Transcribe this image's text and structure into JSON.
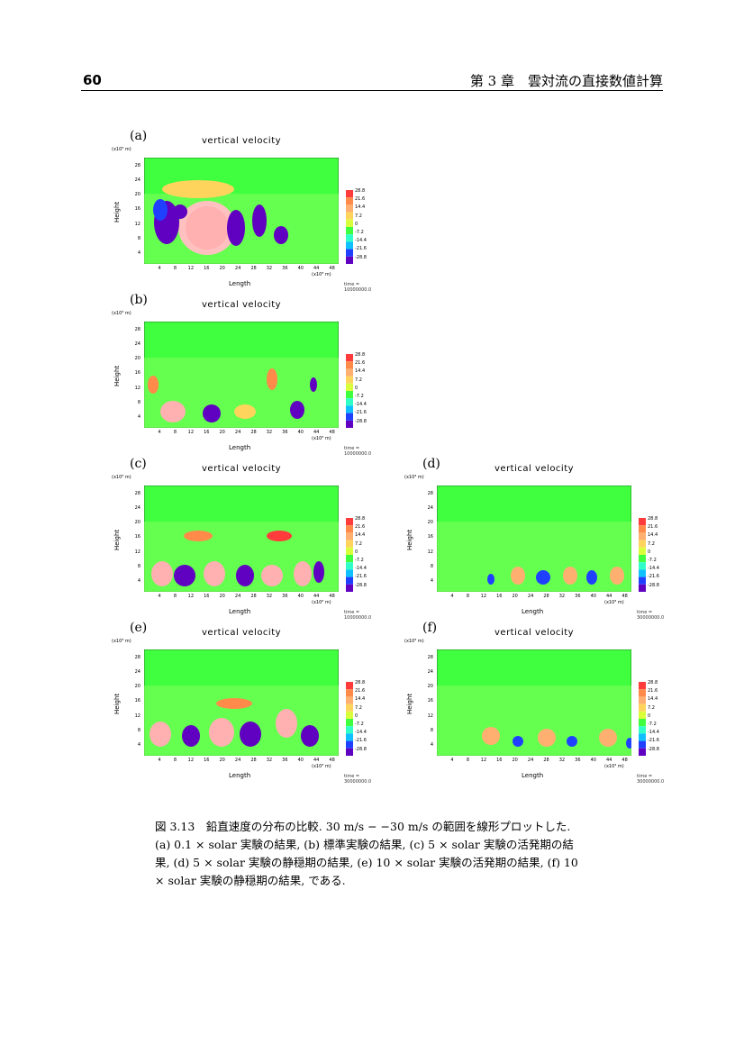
{
  "header": {
    "page_number": "60",
    "chapter": "第 3 章　雲対流の直接数値計算"
  },
  "panels": [
    {
      "label": "(a)",
      "title": "vertical  velocity",
      "yunit": "(x10³ m)",
      "ylabel": "Height",
      "xlabel": "Length",
      "xunit": "(x10³ m)",
      "time": "time =  10000000.0",
      "yticks": [
        "28",
        "24",
        "20",
        "16",
        "12",
        "8",
        "4"
      ],
      "xticks": [
        "4",
        "8",
        "12",
        "16",
        "20",
        "24",
        "28",
        "32",
        "36",
        "40",
        "44",
        "48"
      ],
      "cbar": [
        "28.8",
        "21.6",
        "14.4",
        "7.2",
        "0",
        "-7.2",
        "-14.4",
        "-21.6",
        "-28.8"
      ]
    },
    {
      "label": "(b)",
      "title": "vertical  velocity",
      "yunit": "(x10³ m)",
      "ylabel": "Height",
      "xlabel": "Length",
      "xunit": "(x10³ m)",
      "time": "time =  10000000.0",
      "yticks": [
        "28",
        "24",
        "20",
        "16",
        "12",
        "8",
        "4"
      ],
      "xticks": [
        "4",
        "8",
        "12",
        "16",
        "20",
        "24",
        "28",
        "32",
        "36",
        "40",
        "44",
        "48"
      ],
      "cbar": [
        "28.8",
        "21.6",
        "14.4",
        "7.2",
        "0",
        "-7.2",
        "-14.4",
        "-21.6",
        "-28.8"
      ]
    },
    {
      "label": "(c)",
      "title": "vertical  velocity",
      "yunit": "(x10³ m)",
      "ylabel": "Height",
      "xlabel": "Length",
      "xunit": "(x10³ m)",
      "time": "time =  10000000.0",
      "yticks": [
        "28",
        "24",
        "20",
        "16",
        "12",
        "8",
        "4"
      ],
      "xticks": [
        "4",
        "8",
        "12",
        "16",
        "20",
        "24",
        "28",
        "32",
        "36",
        "40",
        "44",
        "48"
      ],
      "cbar": [
        "28.8",
        "21.6",
        "14.4",
        "7.2",
        "0",
        "-7.2",
        "-14.4",
        "-21.6",
        "-28.8"
      ]
    },
    {
      "label": "(d)",
      "title": "vertical  velocity",
      "yunit": "(x10³ m)",
      "ylabel": "Height",
      "xlabel": "Length",
      "xunit": "(x10³ m)",
      "time": "time =  30000000.0",
      "yticks": [
        "28",
        "24",
        "20",
        "16",
        "12",
        "8",
        "4"
      ],
      "xticks": [
        "4",
        "8",
        "12",
        "16",
        "20",
        "24",
        "28",
        "32",
        "36",
        "40",
        "44",
        "48"
      ],
      "cbar": [
        "28.8",
        "21.6",
        "14.4",
        "7.2",
        "0",
        "-7.2",
        "-14.4",
        "-21.6",
        "-28.8"
      ]
    },
    {
      "label": "(e)",
      "title": "vertical  velocity",
      "yunit": "(x10³ m)",
      "ylabel": "Height",
      "xlabel": "Length",
      "xunit": "(x10³ m)",
      "time": "time =  30000000.0",
      "yticks": [
        "28",
        "24",
        "20",
        "16",
        "12",
        "8",
        "4"
      ],
      "xticks": [
        "4",
        "8",
        "12",
        "16",
        "20",
        "24",
        "28",
        "32",
        "36",
        "40",
        "44",
        "48"
      ],
      "cbar": [
        "28.8",
        "21.6",
        "14.4",
        "7.2",
        "0",
        "-7.2",
        "-14.4",
        "-21.6",
        "-28.8"
      ]
    },
    {
      "label": "(f)",
      "title": "vertical  velocity",
      "yunit": "(x10³ m)",
      "ylabel": "Height",
      "xlabel": "Length",
      "xunit": "(x10³ m)",
      "time": "time =  30000000.0",
      "yticks": [
        "28",
        "24",
        "20",
        "16",
        "12",
        "8",
        "4"
      ],
      "xticks": [
        "4",
        "8",
        "12",
        "16",
        "20",
        "24",
        "28",
        "32",
        "36",
        "40",
        "44",
        "48"
      ],
      "cbar": [
        "28.8",
        "21.6",
        "14.4",
        "7.2",
        "0",
        "-7.2",
        "-14.4",
        "-21.6",
        "-28.8"
      ]
    }
  ],
  "cbar_colors": [
    "#ff3b3b",
    "#ff8a4a",
    "#ffb070",
    "#ffd45c",
    "#d8ff3a",
    "#3fff3f",
    "#30ffc8",
    "#10c0ff",
    "#2040ff",
    "#6000c0"
  ],
  "caption": {
    "line1": "図 3.13　鉛直速度の分布の比較. 30 m/s − −30 m/s の範囲を線形プロットした.",
    "line2": "(a) 0.1 × solar 実験の結果, (b) 標準実験の結果, (c) 5 × solar 実験の活発期の結",
    "line3": "果, (d) 5 × solar 実験の静穏期の結果, (e) 10 × solar 実験の活発期の結果, (f) 10",
    "line4": "× solar 実験の静穏期の結果, である."
  }
}
